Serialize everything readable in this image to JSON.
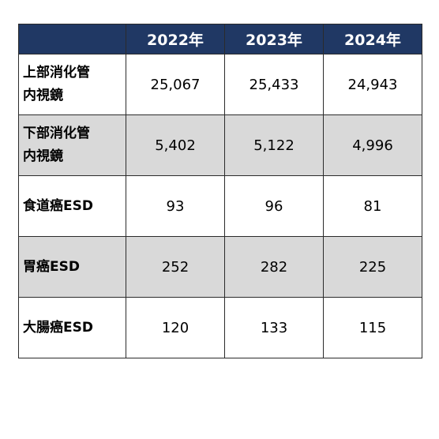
{
  "table": {
    "headers": [
      "",
      "2022年",
      "2023年",
      "2024年"
    ],
    "rows": [
      {
        "label_lines": [
          "上部消化管",
          "内視鏡"
        ],
        "values": [
          "25,067",
          "25,433",
          "24,943"
        ],
        "shaded": false
      },
      {
        "label_lines": [
          "下部消化管",
          "内視鏡"
        ],
        "values": [
          "5,402",
          "5,122",
          "4,996"
        ],
        "shaded": true
      },
      {
        "label_lines": [
          "食道癌ESD"
        ],
        "values": [
          "93",
          "96",
          "81"
        ],
        "shaded": false
      },
      {
        "label_lines": [
          "胃癌ESD"
        ],
        "values": [
          "252",
          "282",
          "225"
        ],
        "shaded": true
      },
      {
        "label_lines": [
          "大腸癌ESD"
        ],
        "values": [
          "120",
          "133",
          "115"
        ],
        "shaded": false
      }
    ]
  },
  "colors": {
    "header_background": "#203864",
    "header_text": "#ffffff",
    "shaded_row": "#d9d9d9",
    "border": "#2b2b2b"
  }
}
